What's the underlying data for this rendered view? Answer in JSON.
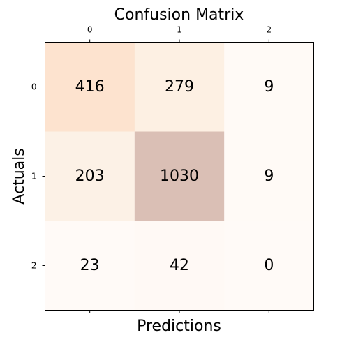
{
  "chart_data": {
    "type": "heatmap",
    "title": "Confusion Matrix",
    "xlabel": "Predictions",
    "ylabel": "Actuals",
    "x_ticks": [
      "0",
      "1",
      "2"
    ],
    "y_ticks": [
      "0",
      "1",
      "2"
    ],
    "x_tick_position": "top",
    "values": [
      [
        416,
        279,
        9
      ],
      [
        203,
        1030,
        9
      ],
      [
        23,
        42,
        0
      ]
    ],
    "colormap": "Oranges",
    "alpha": 0.3,
    "cell_colors": [
      [
        "#fde3cf",
        "#fdf0e3",
        "#fffaf6"
      ],
      [
        "#fcf1e6",
        "#dabfb5",
        "#fffaf6"
      ],
      [
        "#fffaf7",
        "#fff9f5",
        "#fffaf7"
      ]
    ],
    "grid": false
  }
}
